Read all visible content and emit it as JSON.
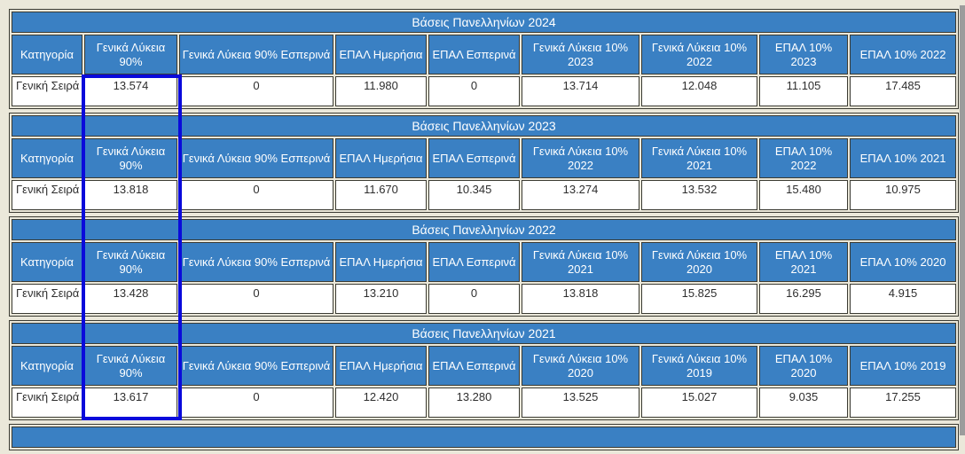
{
  "page": {
    "background": "#ebe8da",
    "frame_color": "#9c9c9c",
    "accent_blue": "#3a80c3",
    "border_color": "#3b3b33",
    "highlight_color": "#0a0adb",
    "highlighted_column": "Γενικά Λύκεια 90%"
  },
  "tables": [
    {
      "title": "Βάσεις Πανελληνίων 2024",
      "headers": [
        "Κατηγορία",
        "Γενικά Λύκεια 90%",
        "Γενικά Λύκεια 90% Εσπερινά",
        "ΕΠΑΛ Ημερήσια",
        "ΕΠΑΛ Εσπερινά",
        "Γενικά Λύκεια 10% 2023",
        "Γενικά Λύκεια 10% 2022",
        "ΕΠΑΛ 10% 2023",
        "ΕΠΑΛ 10% 2022"
      ],
      "cells": [
        "Γενική Σειρά",
        "13.574",
        "0",
        "11.980",
        "0",
        "13.714",
        "12.048",
        "11.105",
        "17.485"
      ]
    },
    {
      "title": "Βάσεις Πανελληνίων 2023",
      "headers": [
        "Κατηγορία",
        "Γενικά Λύκεια 90%",
        "Γενικά Λύκεια 90% Εσπερινά",
        "ΕΠΑΛ Ημερήσια",
        "ΕΠΑΛ Εσπερινά",
        "Γενικά Λύκεια 10% 2022",
        "Γενικά Λύκεια 10% 2021",
        "ΕΠΑΛ 10% 2022",
        "ΕΠΑΛ 10% 2021"
      ],
      "cells": [
        "Γενική Σειρά",
        "13.818",
        "0",
        "11.670",
        "10.345",
        "13.274",
        "13.532",
        "15.480",
        "10.975"
      ]
    },
    {
      "title": "Βάσεις Πανελληνίων 2022",
      "headers": [
        "Κατηγορία",
        "Γενικά Λύκεια 90%",
        "Γενικά Λύκεια 90% Εσπερινά",
        "ΕΠΑΛ Ημερήσια",
        "ΕΠΑΛ Εσπερινά",
        "Γενικά Λύκεια 10% 2021",
        "Γενικά Λύκεια 10% 2020",
        "ΕΠΑΛ 10% 2021",
        "ΕΠΑΛ 10% 2020"
      ],
      "cells": [
        "Γενική Σειρά",
        "13.428",
        "0",
        "13.210",
        "0",
        "13.818",
        "15.825",
        "16.295",
        "4.915"
      ]
    },
    {
      "title": "Βάσεις Πανελληνίων 2021",
      "headers": [
        "Κατηγορία",
        "Γενικά Λύκεια 90%",
        "Γενικά Λύκεια 90% Εσπερινά",
        "ΕΠΑΛ Ημερήσια",
        "ΕΠΑΛ Εσπερινά",
        "Γενικά Λύκεια 10% 2020",
        "Γενικά Λύκεια 10% 2019",
        "ΕΠΑΛ 10% 2020",
        "ΕΠΑΛ 10% 2019"
      ],
      "cells": [
        "Γενική Σειρά",
        "13.617",
        "0",
        "12.420",
        "13.280",
        "13.525",
        "15.027",
        "9.035",
        "17.255"
      ]
    }
  ]
}
